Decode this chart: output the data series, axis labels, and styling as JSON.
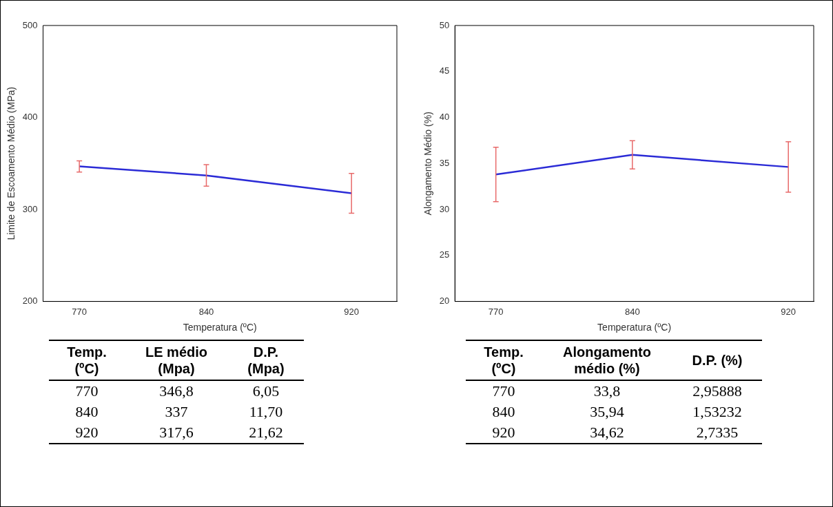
{
  "chart_data": [
    {
      "type": "line",
      "xlabel": "Temperatura (ºC)",
      "ylabel": "Limite de Escoamento Médio (MPa)",
      "x": [
        770,
        840,
        920
      ],
      "xlim": [
        750,
        945
      ],
      "xticks": [
        770,
        840,
        920
      ],
      "ylim": [
        200,
        500
      ],
      "yticks": [
        200,
        300,
        400,
        500
      ],
      "series": [
        {
          "color": "#2b2bd6",
          "values": [
            346.8,
            337,
            317.6
          ],
          "errors": [
            6.05,
            11.7,
            21.62
          ]
        }
      ],
      "grid": false,
      "legend": false,
      "marker": "none",
      "line_style": "solid",
      "annotations": [
        "Temp. (ºC)",
        "LE médio (Mpa)",
        "D.P. (Mpa)",
        "770",
        "346,8",
        "6,05",
        "840",
        "337",
        "11,70",
        "920",
        "317,6",
        "21,62"
      ]
    },
    {
      "type": "line",
      "xlabel": "Temperatura (ºC)",
      "ylabel": "Alongamento Médio (%)",
      "x": [
        770,
        840,
        920
      ],
      "xlim": [
        749,
        933
      ],
      "xticks": [
        770,
        840,
        920
      ],
      "ylim": [
        20,
        50
      ],
      "yticks": [
        20,
        25,
        30,
        35,
        40,
        45,
        50
      ],
      "series": [
        {
          "color": "#2b2bd6",
          "values": [
            33.8,
            35.94,
            34.62
          ],
          "errors": [
            2.95888,
            1.53232,
            2.7335
          ]
        }
      ],
      "grid": false,
      "legend": false,
      "marker": "none",
      "line_style": "solid",
      "annotations": [
        "Temp. (ºC)",
        "Alongamento médio (%)",
        "D.P. (%)",
        "770",
        "33,8",
        "2,95888",
        "840",
        "35,94",
        "1,53232",
        "920",
        "34,62",
        "2,7335"
      ]
    }
  ]
}
